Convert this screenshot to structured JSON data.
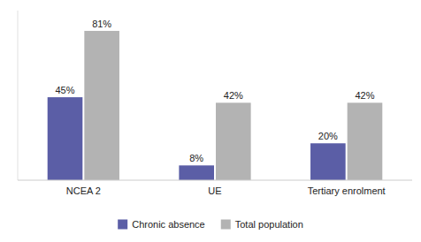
{
  "chart_data": {
    "type": "bar",
    "categories": [
      "NCEA 2",
      "UE",
      "Tertiary enrolment"
    ],
    "series": [
      {
        "name": "Chronic absence",
        "color": "#5b5ea6",
        "values": [
          45,
          8,
          20
        ],
        "value_labels": [
          "45%",
          "8%",
          "20%"
        ]
      },
      {
        "name": "Total population",
        "color": "#b3b3b3",
        "values": [
          81,
          42,
          42
        ],
        "value_labels": [
          "81%",
          "42%",
          "42%"
        ]
      }
    ],
    "ylim": [
      0,
      92
    ],
    "data_labels": true,
    "tick_labels": "x",
    "grid": false,
    "legend": "bottom"
  }
}
